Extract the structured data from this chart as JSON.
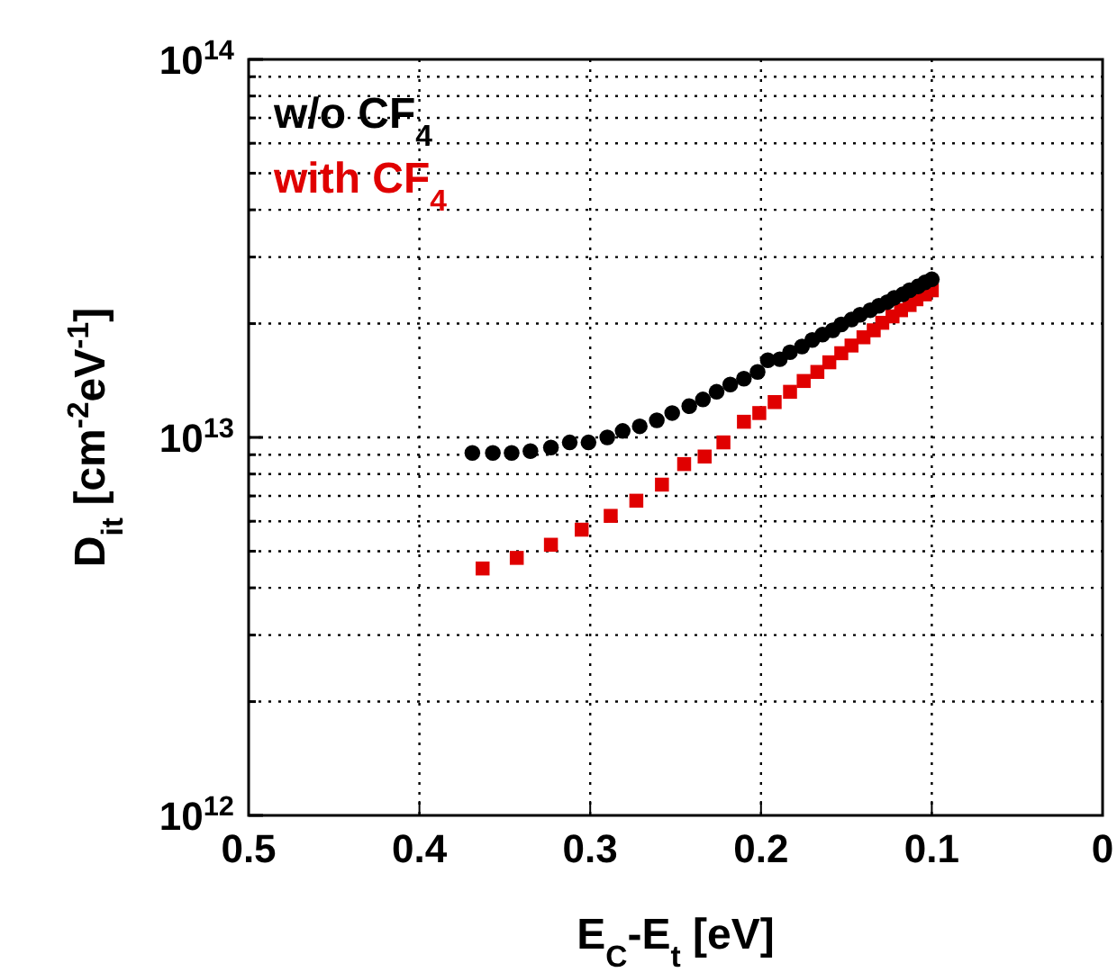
{
  "chart_data": {
    "type": "scatter",
    "xlabel": "E$_{C}$-E$_{t}$ [eV]",
    "ylabel": "D$_{it}$ [cm$^{-2}$eV$^{-1}$]",
    "log": "y",
    "grid": true,
    "legend": "top left",
    "xlim": [
      0.5,
      0
    ],
    "xticks": [
      0.5,
      0.4,
      0.3,
      0.2,
      0.1,
      0
    ],
    "ylim": [
      1000000000000.0,
      100000000000000.0
    ],
    "yticks": [
      {
        "value": 1000000000000.0,
        "label": "10$^{12}$"
      },
      {
        "value": 2000000000000.0,
        "label": null
      },
      {
        "value": 3000000000000.0,
        "label": null
      },
      {
        "value": 4000000000000.0,
        "label": null
      },
      {
        "value": 5000000000000.0,
        "label": null
      },
      {
        "value": 6000000000000.0,
        "label": null
      },
      {
        "value": 7000000000000.0,
        "label": null
      },
      {
        "value": 8000000000000.0,
        "label": null
      },
      {
        "value": 9000000000000.0,
        "label": null
      },
      {
        "value": 10000000000000.0,
        "label": "10$^{13}$"
      },
      {
        "value": 20000000000000.0,
        "label": null
      },
      {
        "value": 30000000000000.0,
        "label": null
      },
      {
        "value": 40000000000000.0,
        "label": null
      },
      {
        "value": 50000000000000.0,
        "label": null
      },
      {
        "value": 60000000000000.0,
        "label": null
      },
      {
        "value": 70000000000000.0,
        "label": null
      },
      {
        "value": 80000000000000.0,
        "label": null
      },
      {
        "value": 90000000000000.0,
        "label": null
      },
      {
        "value": 100000000000000.0,
        "label": "10$^{14}$"
      }
    ],
    "series": [
      {
        "name": "w/o CF$_{4}$",
        "color": "#000000",
        "marker": "circle",
        "x": [
          0.369,
          0.357,
          0.346,
          0.335,
          0.323,
          0.312,
          0.301,
          0.29,
          0.281,
          0.271,
          0.261,
          0.252,
          0.242,
          0.234,
          0.226,
          0.218,
          0.21,
          0.202,
          0.196,
          0.189,
          0.183,
          0.176,
          0.17,
          0.164,
          0.158,
          0.153,
          0.147,
          0.142,
          0.136,
          0.131,
          0.126,
          0.122,
          0.117,
          0.113,
          0.108,
          0.104,
          0.1
        ],
        "values": [
          9100000000000.0,
          9100000000000.0,
          9100000000000.0,
          9200000000000.0,
          9400000000000.0,
          9700000000000.0,
          9700000000000.0,
          10000000000000.0,
          10400000000000.0,
          10700000000000.0,
          11100000000000.0,
          11600000000000.0,
          12100000000000.0,
          12600000000000.0,
          13200000000000.0,
          13800000000000.0,
          14300000000000.0,
          14900000000000.0,
          16000000000000.0,
          16100000000000.0,
          16800000000000.0,
          17400000000000.0,
          18100000000000.0,
          18700000000000.0,
          19200000000000.0,
          19900000000000.0,
          20500000000000.0,
          21100000000000.0,
          21700000000000.0,
          22300000000000.0,
          22800000000000.0,
          23400000000000.0,
          23900000000000.0,
          24500000000000.0,
          25100000000000.0,
          25700000000000.0,
          26200000000000.0
        ]
      },
      {
        "name": "with CF$_{4}$",
        "color": "#e00000",
        "marker": "square",
        "x": [
          0.363,
          0.343,
          0.323,
          0.305,
          0.288,
          0.273,
          0.258,
          0.245,
          0.233,
          0.222,
          0.21,
          0.201,
          0.192,
          0.183,
          0.175,
          0.167,
          0.16,
          0.153,
          0.147,
          0.14,
          0.134,
          0.129,
          0.123,
          0.118,
          0.113,
          0.109,
          0.104,
          0.1
        ],
        "values": [
          4500000000000.0,
          4800000000000.0,
          5200000000000.0,
          5700000000000.0,
          6200000000000.0,
          6800000000000.0,
          7500000000000.0,
          8500000000000.0,
          8900000000000.0,
          9700000000000.0,
          11000000000000.0,
          11600000000000.0,
          12400000000000.0,
          13200000000000.0,
          14100000000000.0,
          14900000000000.0,
          15800000000000.0,
          16700000000000.0,
          17500000000000.0,
          18400000000000.0,
          19200000000000.0,
          20100000000000.0,
          20900000000000.0,
          21700000000000.0,
          22400000000000.0,
          23200000000000.0,
          23900000000000.0,
          24500000000000.0
        ]
      }
    ]
  }
}
